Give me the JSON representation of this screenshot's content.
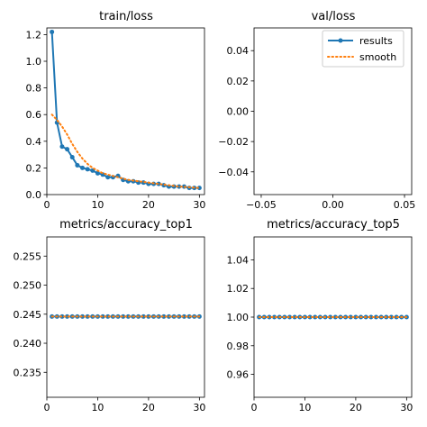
{
  "colors": {
    "results": "#1f77b4",
    "smooth": "#ff7f0e"
  },
  "legend": {
    "results_label": "results",
    "smooth_label": "smooth",
    "placement": "upper-right"
  },
  "chart_data": [
    {
      "type": "line",
      "title": "train/loss",
      "xlabel": "",
      "ylabel": "",
      "xlim": [
        0,
        31
      ],
      "ylim": [
        0,
        1.25
      ],
      "xticks": [
        0,
        10,
        20,
        30
      ],
      "yticks": [
        0.0,
        0.2,
        0.4,
        0.6,
        0.8,
        1.0,
        1.2
      ],
      "ytick_decimals": 1,
      "series": [
        {
          "name": "results",
          "style": "line-dots",
          "x": [
            1,
            2,
            3,
            4,
            5,
            6,
            7,
            8,
            9,
            10,
            11,
            12,
            13,
            14,
            15,
            16,
            17,
            18,
            19,
            20,
            21,
            22,
            23,
            24,
            25,
            26,
            27,
            28,
            29,
            30
          ],
          "values": [
            1.22,
            0.54,
            0.36,
            0.34,
            0.28,
            0.22,
            0.2,
            0.19,
            0.18,
            0.16,
            0.15,
            0.13,
            0.13,
            0.14,
            0.11,
            0.1,
            0.1,
            0.09,
            0.09,
            0.08,
            0.08,
            0.08,
            0.07,
            0.06,
            0.06,
            0.06,
            0.06,
            0.05,
            0.05,
            0.05
          ]
        },
        {
          "name": "smooth",
          "style": "dotted",
          "x": [
            1,
            2,
            3,
            4,
            5,
            6,
            7,
            8,
            9,
            10,
            11,
            12,
            13,
            14,
            15,
            16,
            17,
            18,
            19,
            20,
            21,
            22,
            23,
            24,
            25,
            26,
            27,
            28,
            29,
            30
          ],
          "values": [
            0.6,
            0.56,
            0.51,
            0.45,
            0.38,
            0.32,
            0.27,
            0.23,
            0.2,
            0.18,
            0.16,
            0.15,
            0.14,
            0.13,
            0.12,
            0.11,
            0.105,
            0.1,
            0.095,
            0.09,
            0.085,
            0.08,
            0.075,
            0.07,
            0.065,
            0.06,
            0.058,
            0.055,
            0.052,
            0.05
          ]
        }
      ]
    },
    {
      "type": "line",
      "title": "val/loss",
      "xlabel": "",
      "ylabel": "",
      "xlim": [
        -0.055,
        0.055
      ],
      "ylim": [
        -0.055,
        0.055
      ],
      "xticks": [
        -0.05,
        0.0,
        0.05
      ],
      "yticks": [
        -0.04,
        -0.02,
        0.0,
        0.02,
        0.04
      ],
      "xtick_labels": [
        "−0.05",
        "0.00",
        "0.05"
      ],
      "ytick_labels": [
        "−0.04",
        "−0.02",
        "0.00",
        "0.02",
        "0.04"
      ],
      "series": [],
      "legend": true
    },
    {
      "type": "line",
      "title": "metrics/accuracy_top1",
      "xlabel": "",
      "ylabel": "",
      "xlim": [
        0,
        31
      ],
      "ylim": [
        0.2307,
        0.2583
      ],
      "xticks": [
        0,
        10,
        20,
        30
      ],
      "yticks": [
        0.235,
        0.24,
        0.245,
        0.25,
        0.255
      ],
      "ytick_decimals": 3,
      "series": [
        {
          "name": "results",
          "style": "line-dots",
          "x": [
            1,
            2,
            3,
            4,
            5,
            6,
            7,
            8,
            9,
            10,
            11,
            12,
            13,
            14,
            15,
            16,
            17,
            18,
            19,
            20,
            21,
            22,
            23,
            24,
            25,
            26,
            27,
            28,
            29,
            30
          ],
          "values": [
            0.2446,
            0.2446,
            0.2446,
            0.2446,
            0.2446,
            0.2446,
            0.2446,
            0.2446,
            0.2446,
            0.2446,
            0.2446,
            0.2446,
            0.2446,
            0.2446,
            0.2446,
            0.2446,
            0.2446,
            0.2446,
            0.2446,
            0.2446,
            0.2446,
            0.2446,
            0.2446,
            0.2446,
            0.2446,
            0.2446,
            0.2446,
            0.2446,
            0.2446,
            0.2446
          ]
        },
        {
          "name": "smooth",
          "style": "dotted",
          "x": [
            1,
            2,
            3,
            4,
            5,
            6,
            7,
            8,
            9,
            10,
            11,
            12,
            13,
            14,
            15,
            16,
            17,
            18,
            19,
            20,
            21,
            22,
            23,
            24,
            25,
            26,
            27,
            28,
            29,
            30
          ],
          "values": [
            0.2446,
            0.2446,
            0.2446,
            0.2446,
            0.2446,
            0.2446,
            0.2446,
            0.2446,
            0.2446,
            0.2446,
            0.2446,
            0.2446,
            0.2446,
            0.2446,
            0.2446,
            0.2446,
            0.2446,
            0.2446,
            0.2446,
            0.2446,
            0.2446,
            0.2446,
            0.2446,
            0.2446,
            0.2446,
            0.2446,
            0.2446,
            0.2446,
            0.2446,
            0.2446
          ]
        }
      ]
    },
    {
      "type": "line",
      "title": "metrics/accuracy_top5",
      "xlabel": "",
      "ylabel": "",
      "xlim": [
        0,
        31
      ],
      "ylim": [
        0.944,
        1.056
      ],
      "xticks": [
        0,
        10,
        20,
        30
      ],
      "yticks": [
        0.96,
        0.98,
        1.0,
        1.02,
        1.04
      ],
      "ytick_decimals": 2,
      "series": [
        {
          "name": "results",
          "style": "line-dots",
          "x": [
            1,
            2,
            3,
            4,
            5,
            6,
            7,
            8,
            9,
            10,
            11,
            12,
            13,
            14,
            15,
            16,
            17,
            18,
            19,
            20,
            21,
            22,
            23,
            24,
            25,
            26,
            27,
            28,
            29,
            30
          ],
          "values": [
            1,
            1,
            1,
            1,
            1,
            1,
            1,
            1,
            1,
            1,
            1,
            1,
            1,
            1,
            1,
            1,
            1,
            1,
            1,
            1,
            1,
            1,
            1,
            1,
            1,
            1,
            1,
            1,
            1,
            1
          ]
        },
        {
          "name": "smooth",
          "style": "dotted",
          "x": [
            1,
            2,
            3,
            4,
            5,
            6,
            7,
            8,
            9,
            10,
            11,
            12,
            13,
            14,
            15,
            16,
            17,
            18,
            19,
            20,
            21,
            22,
            23,
            24,
            25,
            26,
            27,
            28,
            29,
            30
          ],
          "values": [
            1,
            1,
            1,
            1,
            1,
            1,
            1,
            1,
            1,
            1,
            1,
            1,
            1,
            1,
            1,
            1,
            1,
            1,
            1,
            1,
            1,
            1,
            1,
            1,
            1,
            1,
            1,
            1,
            1,
            1
          ]
        }
      ]
    }
  ]
}
